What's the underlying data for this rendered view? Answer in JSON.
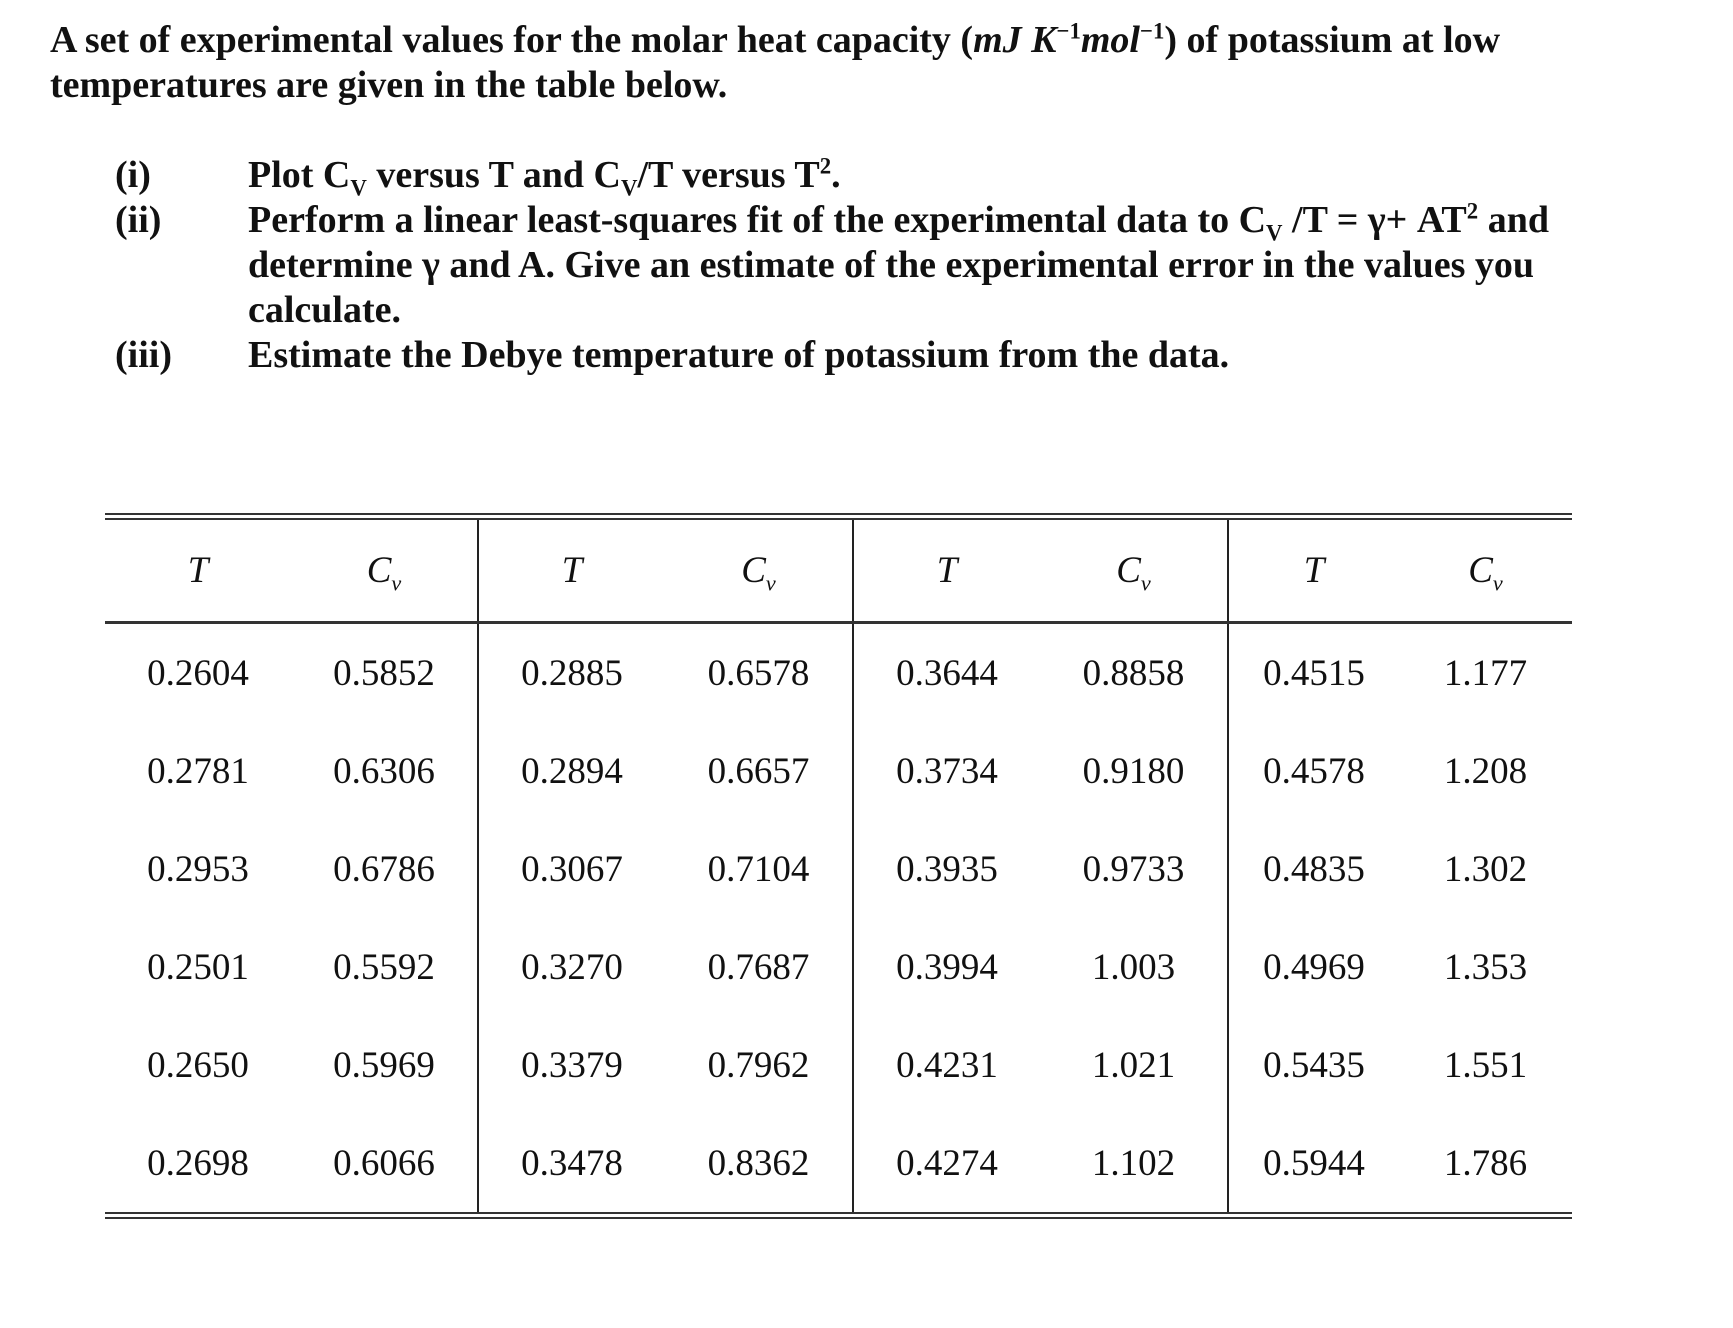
{
  "intro": [
    {
      "text": "A set of experimental values for the molar heat capacity ("
    },
    {
      "text": "mJ K",
      "style": "italic"
    },
    {
      "text": "−1",
      "style": "sup"
    },
    {
      "text": "mol",
      "style": "italic"
    },
    {
      "text": "−1",
      "style": "sup"
    },
    {
      "text": ") of potassium at low temperatures are given in the table below."
    }
  ],
  "items": [
    {
      "marker": "(i)",
      "parts": [
        {
          "text": "Plot C"
        },
        {
          "text": "V",
          "style": "sub"
        },
        {
          "text": " versus T and C"
        },
        {
          "text": "V",
          "style": "sub"
        },
        {
          "text": "/T versus T"
        },
        {
          "text": "2",
          "style": "sup"
        },
        {
          "text": "."
        }
      ]
    },
    {
      "marker": "(ii)",
      "parts": [
        {
          "text": "Perform a linear least-squares fit of the experimental data to C"
        },
        {
          "text": "V",
          "style": "sub"
        },
        {
          "text": " /T = γ+ AT"
        },
        {
          "text": "2",
          "style": "sup"
        },
        {
          "text": " and determine γ and A. Give an estimate of the experimental error in the values you calculate."
        }
      ]
    },
    {
      "marker": "(iii)",
      "parts": [
        {
          "text": "Estimate the Debye temperature of potassium from the data."
        }
      ]
    }
  ],
  "table": {
    "headers": [
      {
        "text": "T"
      },
      {
        "text": "C",
        "sub": "v"
      },
      {
        "text": "T"
      },
      {
        "text": "C",
        "sub": "v"
      },
      {
        "text": "T"
      },
      {
        "text": "C",
        "sub": "v"
      },
      {
        "text": "T"
      },
      {
        "text": "C",
        "sub": "v"
      }
    ],
    "rows": [
      [
        "0.2604",
        "0.5852",
        "0.2885",
        "0.6578",
        "0.3644",
        "0.8858",
        "0.4515",
        "1.177"
      ],
      [
        "0.2781",
        "0.6306",
        "0.2894",
        "0.6657",
        "0.3734",
        "0.9180",
        "0.4578",
        "1.208"
      ],
      [
        "0.2953",
        "0.6786",
        "0.3067",
        "0.7104",
        "0.3935",
        "0.9733",
        "0.4835",
        "1.302"
      ],
      [
        "0.2501",
        "0.5592",
        "0.3270",
        "0.7687",
        "0.3994",
        "1.003",
        "0.4969",
        "1.353"
      ],
      [
        "0.2650",
        "0.5969",
        "0.3379",
        "0.7962",
        "0.4231",
        "1.021",
        "0.5435",
        "1.551"
      ],
      [
        "0.2698",
        "0.6066",
        "0.3478",
        "0.8362",
        "0.4274",
        "1.102",
        "0.5944",
        "1.786"
      ]
    ]
  }
}
